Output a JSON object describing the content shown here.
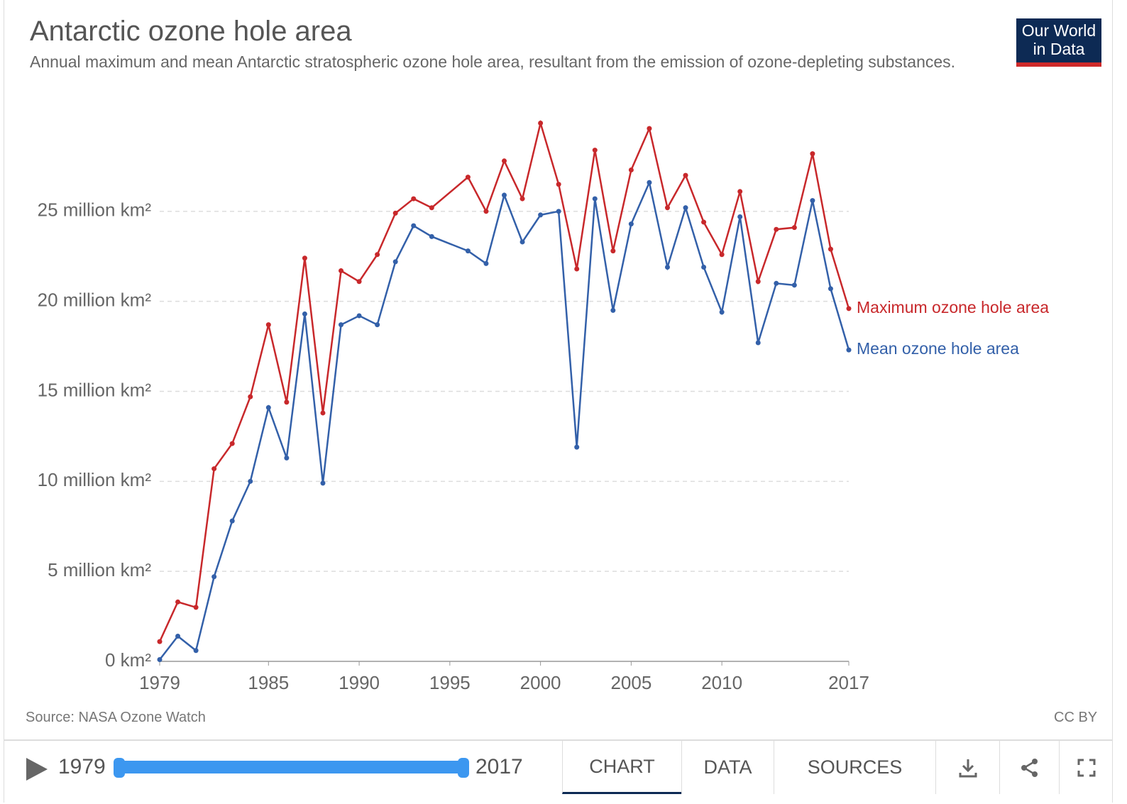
{
  "chart_data": {
    "type": "line",
    "title": "Antarctic ozone hole area",
    "subtitle": "Annual maximum and mean Antarctic stratospheric ozone hole area, resultant from the emission of ozone-depleting substances.",
    "source": "Source: NASA Ozone Watch",
    "license": "CC BY",
    "x": [
      1979,
      1980,
      1981,
      1982,
      1983,
      1984,
      1985,
      1986,
      1987,
      1988,
      1989,
      1990,
      1991,
      1992,
      1993,
      1994,
      1996,
      1997,
      1998,
      1999,
      2000,
      2001,
      2002,
      2003,
      2004,
      2005,
      2006,
      2007,
      2008,
      2009,
      2010,
      2011,
      2012,
      2013,
      2014,
      2015,
      2016,
      2017
    ],
    "series": [
      {
        "name": "Maximum ozone hole area",
        "color": "#c8282b",
        "values": [
          1.1,
          3.3,
          3.0,
          10.7,
          12.1,
          14.7,
          18.7,
          14.4,
          22.4,
          13.8,
          21.7,
          21.1,
          22.6,
          24.9,
          25.7,
          25.2,
          26.9,
          25.0,
          27.8,
          25.7,
          29.9,
          26.5,
          21.8,
          28.4,
          22.8,
          27.3,
          29.6,
          25.2,
          27.0,
          24.4,
          22.6,
          26.1,
          21.1,
          24.0,
          24.1,
          28.2,
          22.9,
          19.6
        ]
      },
      {
        "name": "Mean ozone hole area",
        "color": "#3360a9",
        "values": [
          0.1,
          1.4,
          0.6,
          4.7,
          7.8,
          10.0,
          14.1,
          11.3,
          19.3,
          9.9,
          18.7,
          19.2,
          18.7,
          22.2,
          24.2,
          23.6,
          22.8,
          22.1,
          25.9,
          23.3,
          24.8,
          25.0,
          11.9,
          25.7,
          19.5,
          24.3,
          26.6,
          21.9,
          25.2,
          21.9,
          19.4,
          24.7,
          17.7,
          21.0,
          20.9,
          25.6,
          20.7,
          17.3
        ]
      }
    ],
    "xlim": [
      1979,
      2017
    ],
    "xticks": [
      1979,
      1985,
      1990,
      1995,
      2000,
      2005,
      2010,
      2017
    ],
    "ylim": [
      0,
      30
    ],
    "yticks": [
      {
        "value": 0,
        "label": "0 km²"
      },
      {
        "value": 5,
        "label": "5 million km²"
      },
      {
        "value": 10,
        "label": "10 million km²"
      },
      {
        "value": 15,
        "label": "15 million km²"
      },
      {
        "value": 20,
        "label": "20 million km²"
      },
      {
        "value": 25,
        "label": "25 million km²"
      }
    ],
    "grid": true
  },
  "logo": "Our World in Data",
  "controls": {
    "timeline_start": "1979",
    "timeline_end": "2017",
    "tabs": [
      "CHART",
      "DATA",
      "SOURCES"
    ]
  }
}
